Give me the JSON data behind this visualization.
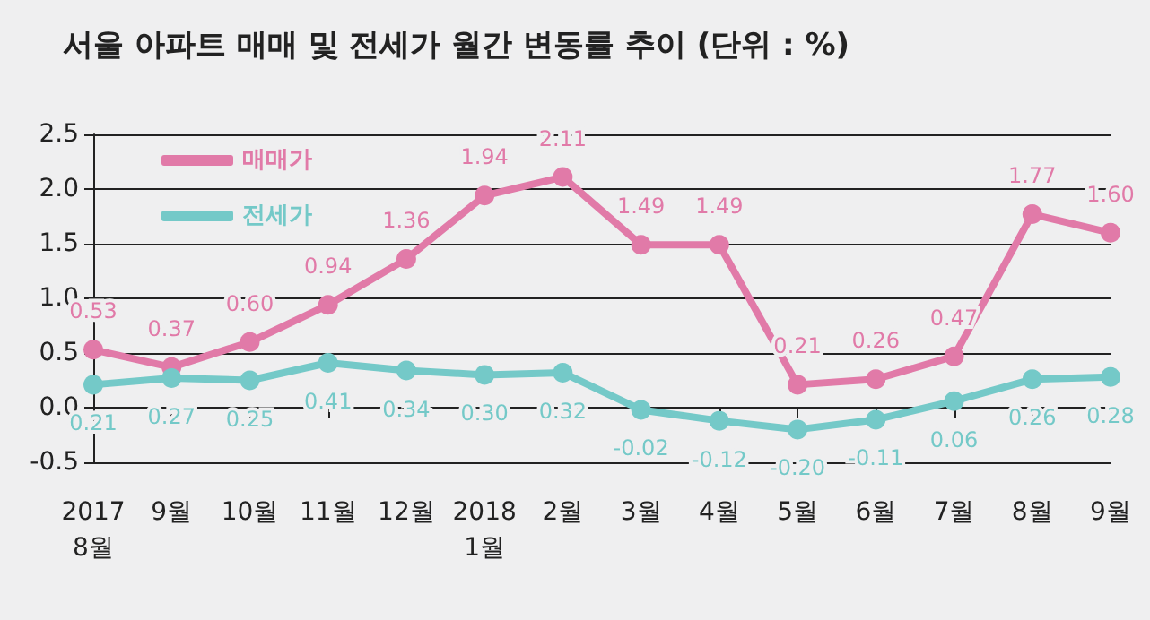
{
  "chart_data": {
    "type": "line",
    "title": "서울 아파트 매매 및 전세가 월간 변동률 추이 (단위 : %)",
    "categories": [
      "2017\n8월",
      "9월",
      "10월",
      "11월",
      "12월",
      "2018\n1월",
      "2월",
      "3월",
      "4월",
      "5월",
      "6월",
      "7월",
      "8월",
      "9월"
    ],
    "series": [
      {
        "name": "매매가",
        "color": "#e17aa8",
        "values": [
          0.53,
          0.37,
          0.6,
          0.94,
          1.36,
          1.94,
          2.11,
          1.49,
          1.49,
          0.21,
          0.26,
          0.47,
          1.77,
          1.6
        ],
        "value_labels": [
          "0.53",
          "0.37",
          "0.60",
          "0.94",
          "1.36",
          "1.94",
          "2.11",
          "1.49",
          "1.49",
          "0.21",
          "0.26",
          "0.47",
          "1.77",
          "1.60"
        ]
      },
      {
        "name": "전세가",
        "color": "#74c9c8",
        "values": [
          0.21,
          0.27,
          0.25,
          0.41,
          0.34,
          0.3,
          0.32,
          -0.02,
          -0.12,
          -0.2,
          -0.11,
          0.06,
          0.26,
          0.28
        ],
        "value_labels": [
          "0.21",
          "0.27",
          "0.25",
          "0.41",
          "0.34",
          "0.30",
          "0.32",
          "-0.02",
          "-0.12",
          "-0.20",
          "-0.11",
          "0.06",
          "0.26",
          "0.28"
        ]
      }
    ],
    "ylim": [
      -0.5,
      2.5
    ],
    "yticks": [
      -0.5,
      {
        "value": 0,
        "label": "0.0"
      },
      0.5,
      {
        "value": 1,
        "label": "1.0"
      },
      1.5,
      {
        "value": 2,
        "label": "2.0"
      },
      2.5
    ],
    "grid": "y",
    "legend": "top left",
    "marker": "circle",
    "line_style": "solid"
  }
}
